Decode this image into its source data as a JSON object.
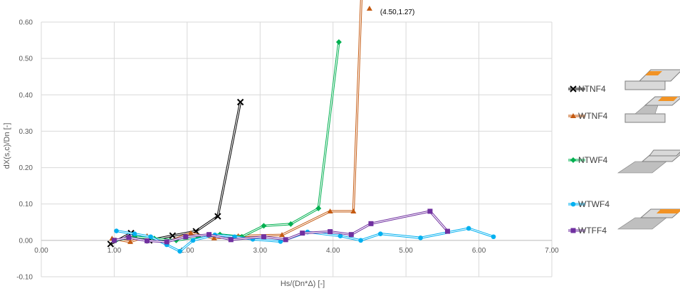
{
  "chart_data": {
    "type": "line",
    "title": "",
    "xlabel": "Hs/(Dn*Δ) [-]",
    "ylabel": "dX(s,c)/Dn [-]",
    "xlim": [
      0,
      7
    ],
    "ylim": [
      -0.1,
      0.6
    ],
    "grid": true,
    "legend_position": "right",
    "x_ticks": [
      0,
      1,
      2,
      3,
      4,
      5,
      6,
      7
    ],
    "x_tick_labels": [
      "0.00",
      "1.00",
      "2.00",
      "3.00",
      "4.00",
      "5.00",
      "6.00",
      "7.00"
    ],
    "y_ticks": [
      -0.1,
      0,
      0.1,
      0.2,
      0.3,
      0.4,
      0.5,
      0.6
    ],
    "y_tick_labels": [
      "-0.10",
      "0.00",
      "0.10",
      "0.20",
      "0.30",
      "0.40",
      "0.50",
      "0.60"
    ],
    "series": [
      {
        "name": "NTNF4",
        "color": "#000000",
        "marker": "x",
        "x": [
          0.95,
          1.23,
          1.48,
          1.8,
          2.12,
          2.42,
          2.73
        ],
        "y": [
          -0.01,
          0.02,
          0.0,
          0.013,
          0.025,
          0.066,
          0.38
        ]
      },
      {
        "name": "WTNF4",
        "color": "#c55a11",
        "marker": "triangle",
        "x": [
          0.97,
          1.22,
          1.45,
          1.72,
          2.05,
          2.37,
          2.7,
          3.3,
          3.96,
          4.28,
          4.5
        ],
        "y": [
          0.005,
          -0.004,
          0.012,
          -0.005,
          0.02,
          0.006,
          0.012,
          0.015,
          0.08,
          0.08,
          1.27
        ]
      },
      {
        "name": "NTWF4",
        "color": "#00b050",
        "marker": "diamond",
        "x": [
          1.02,
          1.28,
          1.55,
          1.85,
          2.15,
          2.45,
          2.75,
          3.05,
          3.42,
          3.8,
          4.08
        ],
        "y": [
          0.0,
          0.01,
          0.005,
          0.0,
          0.01,
          0.016,
          0.01,
          0.04,
          0.045,
          0.088,
          0.545
        ]
      },
      {
        "name": "WTWF4",
        "color": "#00b0f0",
        "marker": "circle",
        "x": [
          1.03,
          1.28,
          1.5,
          1.72,
          1.9,
          2.08,
          2.38,
          2.65,
          2.9,
          3.28,
          3.65,
          4.1,
          4.38,
          4.65,
          5.2,
          5.86,
          6.2
        ],
        "y": [
          0.026,
          0.018,
          0.01,
          -0.012,
          -0.03,
          0.0,
          0.015,
          0.01,
          0.003,
          -0.003,
          0.023,
          0.012,
          0.0,
          0.018,
          0.007,
          0.033,
          0.01
        ]
      },
      {
        "name": "WTFF4",
        "color": "#7030a0",
        "marker": "square",
        "x": [
          1.0,
          1.2,
          1.45,
          1.72,
          1.98,
          2.3,
          2.6,
          3.05,
          3.35,
          3.58,
          3.96,
          4.25,
          4.52,
          5.33,
          5.57
        ],
        "y": [
          0.0,
          0.008,
          -0.001,
          -0.004,
          0.01,
          0.016,
          0.002,
          0.01,
          0.002,
          0.02,
          0.024,
          0.016,
          0.046,
          0.08,
          0.025
        ]
      }
    ],
    "annotations": [
      {
        "text": "(4.50,1.27)",
        "x": 4.5,
        "y": 1.27
      }
    ]
  }
}
